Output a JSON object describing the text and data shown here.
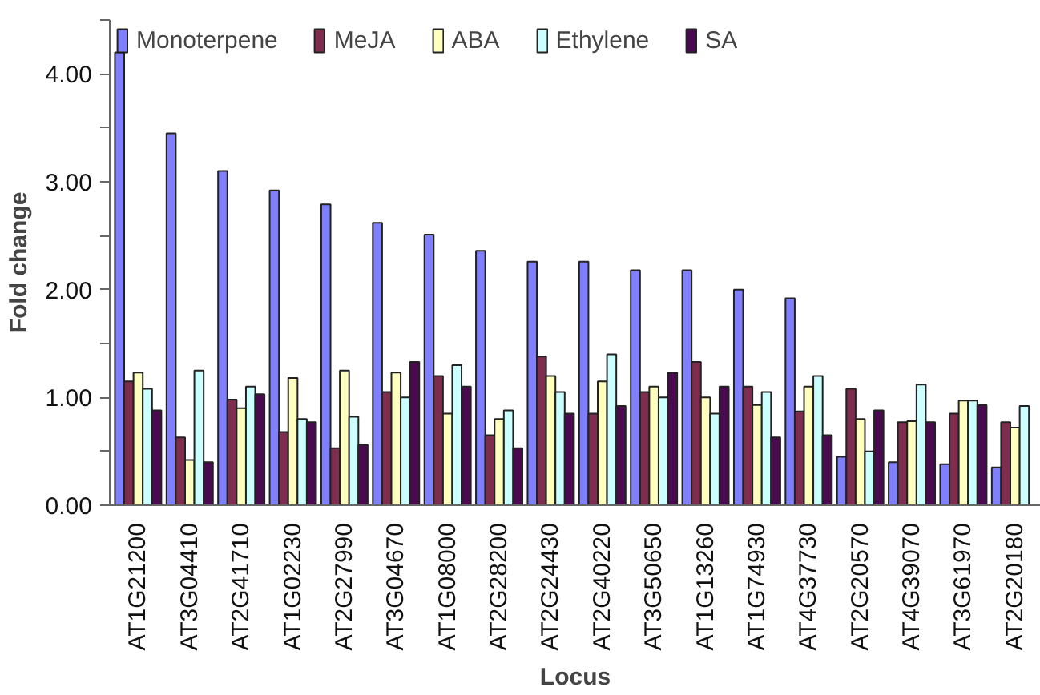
{
  "chart_data": {
    "type": "bar",
    "xlabel": "Locus",
    "ylabel": "Fold change",
    "categories": [
      "AT1G21200",
      "AT3G04410",
      "AT2G41710",
      "AT1G02230",
      "AT2G27990",
      "AT3G04670",
      "AT1G08000",
      "AT2G28200",
      "AT2G24430",
      "AT2G40220",
      "AT3G50650",
      "AT1G13260",
      "AT1G74930",
      "AT4G37730",
      "AT2G20570",
      "AT4G39070",
      "AT3G61970",
      "AT2G20180"
    ],
    "series": [
      {
        "name": "Monoterpene",
        "color": "#8080ff",
        "values": [
          4.2,
          3.45,
          3.1,
          2.92,
          2.79,
          2.62,
          2.51,
          2.36,
          2.26,
          2.26,
          2.18,
          2.18,
          2.0,
          1.92,
          0.45,
          0.4,
          0.38,
          0.35
        ]
      },
      {
        "name": "MeJA",
        "color": "#7f2d4f",
        "values": [
          1.15,
          0.63,
          0.98,
          0.68,
          0.53,
          1.05,
          1.2,
          0.65,
          1.38,
          0.85,
          1.05,
          1.33,
          1.1,
          0.87,
          1.08,
          0.77,
          0.85,
          0.77
        ]
      },
      {
        "name": "ABA",
        "color": "#ffffc0",
        "values": [
          1.23,
          0.42,
          0.9,
          1.18,
          1.25,
          1.23,
          0.85,
          0.8,
          1.2,
          1.15,
          1.1,
          1.0,
          0.93,
          1.1,
          0.8,
          0.78,
          0.97,
          0.72
        ]
      },
      {
        "name": "Ethylene",
        "color": "#ccffff",
        "values": [
          1.08,
          1.25,
          1.1,
          0.8,
          0.82,
          1.0,
          1.3,
          0.88,
          1.05,
          1.4,
          1.0,
          0.85,
          1.05,
          1.2,
          0.5,
          1.12,
          0.97,
          0.92
        ]
      },
      {
        "name": "SA",
        "color": "#4a0a50",
        "values": [
          0.88,
          0.4,
          1.03,
          0.77,
          0.56,
          1.33,
          1.1,
          0.53,
          0.85,
          0.92,
          1.23,
          1.1,
          0.63,
          0.65,
          0.88,
          0.77,
          0.93,
          null
        ]
      }
    ],
    "ylim": [
      0,
      4.5
    ],
    "yticks": [
      {
        "value": 0,
        "label": "0.00"
      },
      {
        "value": 0.5,
        "label": null
      },
      {
        "value": 1,
        "label": "1.00"
      },
      {
        "value": 1.5,
        "label": null
      },
      {
        "value": 2,
        "label": "2.00"
      },
      {
        "value": 2.5,
        "label": null
      },
      {
        "value": 3,
        "label": "3.00"
      },
      {
        "value": 3.5,
        "label": null
      },
      {
        "value": 4,
        "label": "4.00"
      },
      {
        "value": 4.5,
        "label": null
      }
    ],
    "grid": false,
    "legend": "top"
  }
}
